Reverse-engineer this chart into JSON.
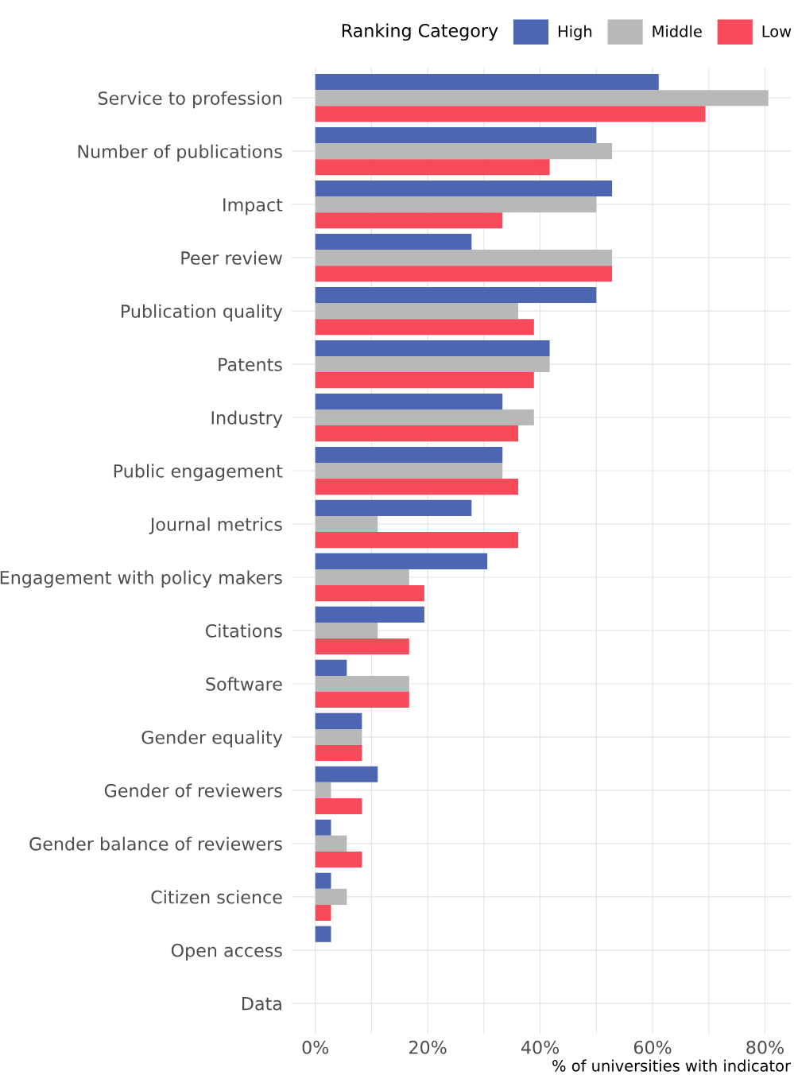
{
  "chart_data": {
    "type": "bar",
    "orientation": "horizontal",
    "categories": [
      "Service to profession",
      "Number of publications",
      "Impact",
      "Peer review",
      "Publication quality",
      "Patents",
      "Industry",
      "Public engagement",
      "Journal metrics",
      "Engagement with policy makers",
      "Citations",
      "Software",
      "Gender equality",
      "Gender of reviewers",
      "Gender balance of reviewers",
      "Citizen science",
      "Open access",
      "Data"
    ],
    "series": [
      {
        "name": "High",
        "color": "#4c66b2",
        "values": [
          61.1,
          50,
          52.8,
          27.8,
          50,
          41.7,
          33.3,
          33.3,
          27.8,
          30.6,
          19.4,
          5.6,
          8.3,
          11.1,
          2.8,
          2.8,
          2.8,
          0
        ]
      },
      {
        "name": "Middle",
        "color": "#b8b8b8",
        "values": [
          80.6,
          52.8,
          50,
          52.8,
          36.1,
          41.7,
          38.9,
          33.3,
          11.1,
          16.7,
          11.1,
          16.7,
          8.3,
          2.8,
          5.6,
          5.6,
          0,
          0
        ]
      },
      {
        "name": "Low",
        "color": "#f74a5a",
        "values": [
          69.4,
          41.7,
          33.3,
          52.8,
          38.9,
          38.9,
          36.1,
          36.1,
          36.1,
          19.4,
          16.7,
          16.7,
          8.3,
          8.3,
          8.3,
          2.8,
          0,
          0
        ]
      }
    ],
    "xlim": [
      -4.2,
      84.6
    ],
    "xticks": [
      {
        "value": 0,
        "label": "0%"
      },
      {
        "value": 10,
        "label": null
      },
      {
        "value": 20,
        "label": "20%"
      },
      {
        "value": 30,
        "label": null
      },
      {
        "value": 40,
        "label": "40%"
      },
      {
        "value": 50,
        "label": null
      },
      {
        "value": 60,
        "label": "60%"
      },
      {
        "value": 70,
        "label": null
      },
      {
        "value": 80,
        "label": "80%"
      }
    ],
    "xlabel": "% of universities with indicator",
    "legend_title": "Ranking Category",
    "legend": "top",
    "grid": true
  }
}
